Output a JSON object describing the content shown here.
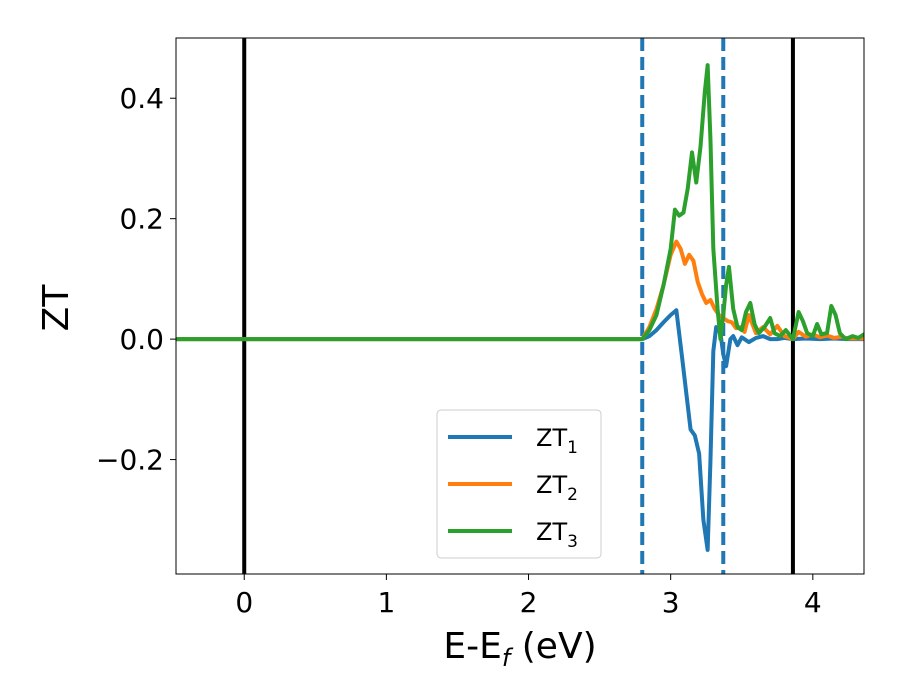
{
  "chart_data": {
    "type": "line",
    "xlabel": "E-E",
    "xlabel_sub": "f",
    "xlabel_unit": " (eV)",
    "ylabel": "ZT",
    "xlim": [
      -0.48,
      4.36
    ],
    "ylim": [
      -0.39,
      0.5
    ],
    "x_ticks": [
      0,
      1,
      2,
      3,
      4
    ],
    "x_tick_labels": [
      "0",
      "1",
      "2",
      "3",
      "4"
    ],
    "y_ticks": [
      -0.2,
      0.0,
      0.2,
      0.4
    ],
    "y_tick_labels": [
      "−0.2",
      "0.0",
      "0.2",
      "0.4"
    ],
    "grid": false,
    "legend_position": "lower-center",
    "vertical_lines": [
      {
        "x": 0.0,
        "style": "solid",
        "color": "#000000"
      },
      {
        "x": 2.8,
        "style": "dashed",
        "color": "#1f77b4"
      },
      {
        "x": 3.37,
        "style": "dashed",
        "color": "#1f77b4"
      },
      {
        "x": 3.86,
        "style": "solid",
        "color": "#000000"
      }
    ],
    "series": [
      {
        "name": "ZT",
        "name_sub": "1",
        "color": "#1f77b4",
        "x": [
          -0.48,
          2.8,
          2.85,
          2.9,
          2.95,
          3.0,
          3.04,
          3.08,
          3.11,
          3.14,
          3.17,
          3.2,
          3.23,
          3.26,
          3.28,
          3.3,
          3.32,
          3.35,
          3.37,
          3.39,
          3.42,
          3.44,
          3.47,
          3.5,
          3.55,
          3.6,
          3.65,
          3.7,
          3.75,
          3.8,
          3.86,
          3.95,
          4.05,
          4.15,
          4.25,
          4.36
        ],
        "y": [
          0.0,
          0.0,
          0.005,
          0.015,
          0.028,
          0.04,
          0.048,
          -0.03,
          -0.09,
          -0.15,
          -0.16,
          -0.19,
          -0.3,
          -0.35,
          -0.2,
          -0.02,
          0.02,
          0.01,
          -0.025,
          -0.045,
          0.0,
          0.005,
          -0.01,
          0.003,
          -0.005,
          0.002,
          0.005,
          0.0,
          0.0,
          0.002,
          0.0,
          0.001,
          0.0,
          0.001,
          0.0,
          0.0
        ]
      },
      {
        "name": "ZT",
        "name_sub": "2",
        "color": "#ff7f0e",
        "x": [
          -0.48,
          2.8,
          2.85,
          2.9,
          2.95,
          3.0,
          3.04,
          3.07,
          3.1,
          3.13,
          3.16,
          3.19,
          3.22,
          3.25,
          3.28,
          3.31,
          3.34,
          3.37,
          3.4,
          3.43,
          3.46,
          3.49,
          3.52,
          3.55,
          3.6,
          3.65,
          3.7,
          3.75,
          3.8,
          3.86,
          3.9,
          3.95,
          4.0,
          4.05,
          4.1,
          4.15,
          4.2,
          4.25,
          4.36
        ],
        "y": [
          0.0,
          0.0,
          0.02,
          0.05,
          0.09,
          0.14,
          0.162,
          0.15,
          0.125,
          0.14,
          0.13,
          0.095,
          0.075,
          0.06,
          0.065,
          0.05,
          0.04,
          0.035,
          0.03,
          0.028,
          0.018,
          0.02,
          0.012,
          0.04,
          0.01,
          0.02,
          0.008,
          0.022,
          0.005,
          0.0,
          0.012,
          0.004,
          0.008,
          0.003,
          0.006,
          0.002,
          0.004,
          0.001,
          0.001
        ]
      },
      {
        "name": "ZT",
        "name_sub": "3",
        "color": "#2ca02c",
        "x": [
          -0.48,
          2.8,
          2.85,
          2.9,
          2.95,
          3.0,
          3.03,
          3.06,
          3.09,
          3.12,
          3.15,
          3.18,
          3.21,
          3.24,
          3.26,
          3.28,
          3.3,
          3.33,
          3.35,
          3.37,
          3.39,
          3.41,
          3.44,
          3.47,
          3.5,
          3.53,
          3.56,
          3.59,
          3.62,
          3.66,
          3.7,
          3.73,
          3.77,
          3.81,
          3.86,
          3.9,
          3.93,
          3.96,
          4.0,
          4.03,
          4.06,
          4.1,
          4.13,
          4.16,
          4.19,
          4.23,
          4.28,
          4.32,
          4.36
        ],
        "y": [
          0.0,
          0.0,
          0.015,
          0.04,
          0.09,
          0.15,
          0.215,
          0.205,
          0.21,
          0.25,
          0.31,
          0.26,
          0.32,
          0.41,
          0.455,
          0.33,
          0.15,
          0.05,
          0.0,
          0.04,
          0.09,
          0.12,
          0.05,
          0.02,
          0.015,
          0.045,
          0.06,
          0.025,
          0.01,
          0.02,
          0.035,
          0.01,
          0.005,
          0.015,
          0.0,
          0.045,
          0.03,
          0.01,
          0.005,
          0.025,
          0.008,
          0.01,
          0.055,
          0.04,
          0.01,
          0.0,
          0.005,
          0.002,
          0.008
        ]
      }
    ]
  }
}
